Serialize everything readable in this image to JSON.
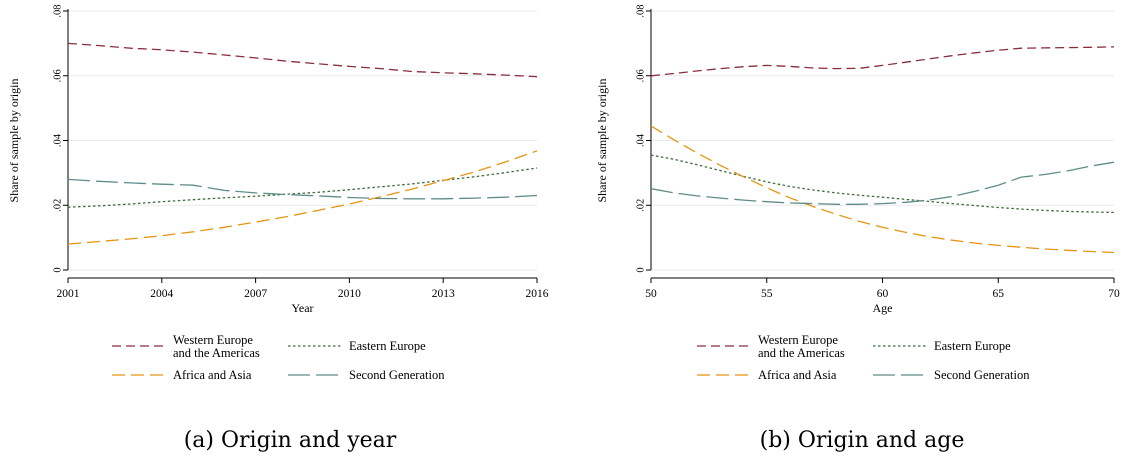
{
  "series_style": {
    "Western Europe and the Americas": {
      "color": "#8b2d3c",
      "dash": "9,5"
    },
    "Eastern Europe": {
      "color": "#3e6b3a",
      "dash": "2.5,2.5"
    },
    "Africa and Asia": {
      "color": "#e69412",
      "dash": "13,6"
    },
    "Second Generation": {
      "color": "#5f8c89",
      "dash": "22,6"
    }
  },
  "chart_data": [
    {
      "type": "line",
      "caption": "(a) Origin and year",
      "xlabel": "Year",
      "ylabel": "Share of sample by origin",
      "xlim": [
        2001,
        2016
      ],
      "ylim": [
        0,
        0.08
      ],
      "xticks": [
        2001,
        2004,
        2007,
        2010,
        2013,
        2016
      ],
      "xtick_labels": [
        "2001",
        "2004",
        "2007",
        "2010",
        "2013",
        "2016"
      ],
      "yticks": [
        0,
        0.02,
        0.04,
        0.06,
        0.08
      ],
      "ytick_labels": [
        "0",
        ".02",
        ".04",
        ".06",
        ".08"
      ],
      "legend": [
        "Western Europe\nand the Americas",
        "Eastern Europe",
        "Africa and Asia",
        "Second Generation"
      ],
      "grid": true,
      "series": [
        {
          "name": "Western Europe and the Americas",
          "x": [
            2001,
            2002,
            2003,
            2004,
            2005,
            2006,
            2007,
            2008,
            2009,
            2010,
            2011,
            2012,
            2013,
            2014,
            2015,
            2016
          ],
          "values": [
            0.07,
            0.0693,
            0.0685,
            0.068,
            0.0673,
            0.0664,
            0.0655,
            0.0645,
            0.0637,
            0.0629,
            0.0622,
            0.0613,
            0.0609,
            0.0606,
            0.0602,
            0.0597
          ]
        },
        {
          "name": "Eastern Europe",
          "x": [
            2001,
            2002,
            2003,
            2004,
            2005,
            2006,
            2007,
            2008,
            2009,
            2010,
            2011,
            2012,
            2013,
            2014,
            2015,
            2016
          ],
          "values": [
            0.0194,
            0.0198,
            0.0204,
            0.0211,
            0.0217,
            0.0223,
            0.0228,
            0.0234,
            0.024,
            0.0248,
            0.0257,
            0.0266,
            0.0277,
            0.0288,
            0.0301,
            0.0315
          ]
        },
        {
          "name": "Africa and Asia",
          "x": [
            2001,
            2002,
            2003,
            2004,
            2005,
            2006,
            2007,
            2008,
            2009,
            2010,
            2011,
            2012,
            2013,
            2014,
            2015,
            2016
          ],
          "values": [
            0.008,
            0.0088,
            0.0096,
            0.0106,
            0.0118,
            0.0132,
            0.0148,
            0.0165,
            0.0184,
            0.0204,
            0.0226,
            0.025,
            0.0276,
            0.0303,
            0.0334,
            0.0368
          ]
        },
        {
          "name": "Second Generation",
          "x": [
            2001,
            2002,
            2003,
            2004,
            2005,
            2006,
            2007,
            2008,
            2009,
            2010,
            2011,
            2012,
            2013,
            2014,
            2015,
            2016
          ],
          "values": [
            0.028,
            0.0274,
            0.0269,
            0.0265,
            0.0262,
            0.0246,
            0.0238,
            0.0233,
            0.0229,
            0.0224,
            0.0221,
            0.022,
            0.022,
            0.0222,
            0.0225,
            0.023
          ]
        }
      ]
    },
    {
      "type": "line",
      "caption": "(b) Origin and age",
      "xlabel": "Age",
      "ylabel": "Share of sample by origin",
      "xlim": [
        50,
        70
      ],
      "ylim": [
        0,
        0.08
      ],
      "xticks": [
        50,
        55,
        60,
        65,
        70
      ],
      "xtick_labels": [
        "50",
        "55",
        "60",
        "65",
        "70"
      ],
      "yticks": [
        0,
        0.02,
        0.04,
        0.06,
        0.08
      ],
      "ytick_labels": [
        "0",
        ".02",
        ".04",
        ".06",
        ".08"
      ],
      "legend": [
        "Western Europe\nand the Americas",
        "Eastern Europe",
        "Africa and Asia",
        "Second Generation"
      ],
      "grid": true,
      "series": [
        {
          "name": "Western Europe and the Americas",
          "x": [
            50,
            51,
            52,
            53,
            54,
            55,
            56,
            57,
            58,
            59,
            60,
            61,
            62,
            63,
            64,
            65,
            66,
            67,
            68,
            69,
            70
          ],
          "values": [
            0.06,
            0.0607,
            0.0615,
            0.0622,
            0.0628,
            0.0632,
            0.0629,
            0.0624,
            0.0622,
            0.0623,
            0.0632,
            0.0642,
            0.0652,
            0.0662,
            0.0671,
            0.0679,
            0.0685,
            0.0686,
            0.0687,
            0.0688,
            0.0689
          ]
        },
        {
          "name": "Eastern Europe",
          "x": [
            50,
            51,
            52,
            53,
            54,
            55,
            56,
            57,
            58,
            59,
            60,
            61,
            62,
            63,
            64,
            65,
            66,
            67,
            68,
            69,
            70
          ],
          "values": [
            0.0355,
            0.0342,
            0.0325,
            0.0307,
            0.0289,
            0.0272,
            0.0258,
            0.0247,
            0.0238,
            0.0231,
            0.0225,
            0.0218,
            0.0212,
            0.0205,
            0.0199,
            0.0193,
            0.0188,
            0.0184,
            0.0181,
            0.0179,
            0.0178
          ]
        },
        {
          "name": "Africa and Asia",
          "x": [
            50,
            51,
            52,
            53,
            54,
            55,
            56,
            57,
            58,
            59,
            60,
            61,
            62,
            63,
            64,
            65,
            66,
            67,
            68,
            69,
            70
          ],
          "values": [
            0.0445,
            0.0402,
            0.0361,
            0.0323,
            0.0288,
            0.0254,
            0.0223,
            0.0196,
            0.0172,
            0.015,
            0.0132,
            0.0116,
            0.0103,
            0.0092,
            0.0083,
            0.0076,
            0.007,
            0.0065,
            0.0061,
            0.0057,
            0.0054
          ]
        },
        {
          "name": "Second Generation",
          "x": [
            50,
            51,
            52,
            53,
            54,
            55,
            56,
            57,
            58,
            59,
            60,
            61,
            62,
            63,
            64,
            65,
            66,
            67,
            68,
            69,
            70
          ],
          "values": [
            0.0251,
            0.0238,
            0.0229,
            0.0222,
            0.0216,
            0.0211,
            0.0207,
            0.0205,
            0.0203,
            0.0203,
            0.0205,
            0.0209,
            0.0216,
            0.0227,
            0.0243,
            0.0262,
            0.0287,
            0.0295,
            0.0306,
            0.0321,
            0.0333
          ]
        }
      ]
    }
  ]
}
